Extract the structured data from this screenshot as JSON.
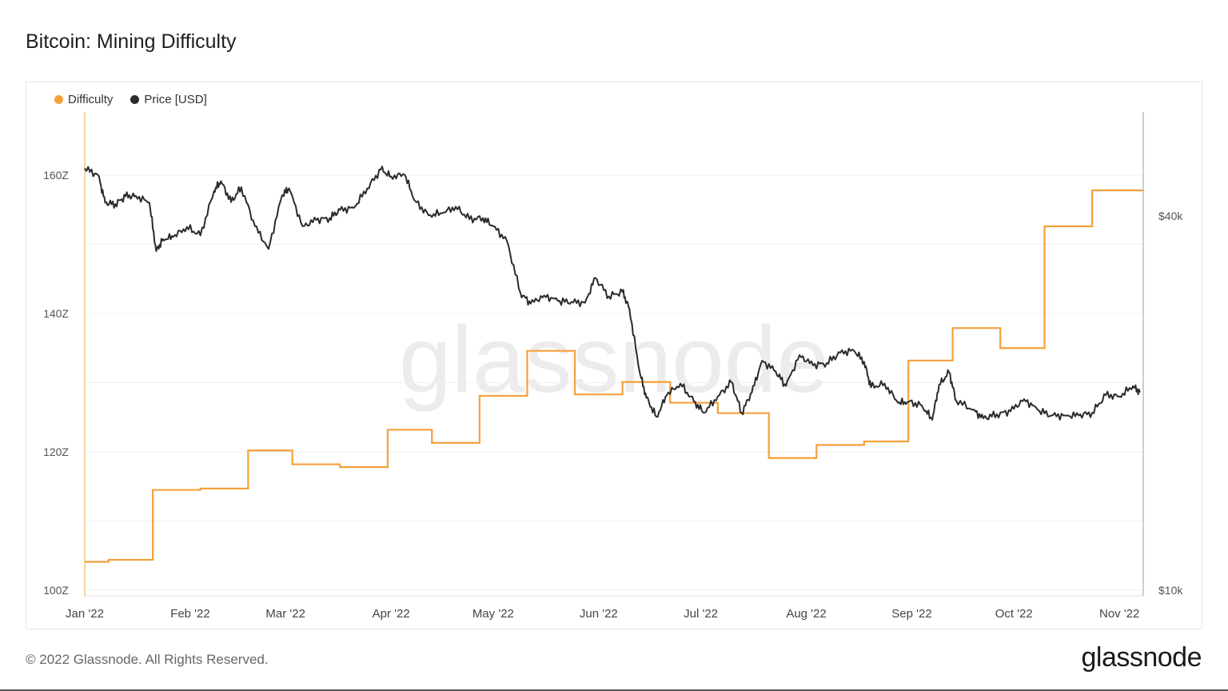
{
  "header": {
    "title": "Bitcoin: Mining Difficulty"
  },
  "legend": {
    "items": [
      {
        "label": "Difficulty",
        "color": "#f5a03a"
      },
      {
        "label": "Price [USD]",
        "color": "#2b2b2b"
      }
    ]
  },
  "watermark": "glassnode",
  "footer": {
    "copyright": "© 2022 Glassnode. All Rights Reserved.",
    "logo_text": "glassnode"
  },
  "chart_data": {
    "type": "line",
    "title": "Bitcoin: Mining Difficulty",
    "x_ticks": [
      "Jan '22",
      "Feb '22",
      "Mar '22",
      "Apr '22",
      "May '22",
      "Jun '22",
      "Jul '22",
      "Aug '22",
      "Sep '22",
      "Oct '22",
      "Nov '22"
    ],
    "y_left": {
      "ticks": [
        "100Z",
        "120Z",
        "140Z",
        "160Z"
      ],
      "range": [
        100,
        170
      ]
    },
    "y_right": {
      "ticks": [
        "$10k",
        "$40k"
      ],
      "scale": "log"
    },
    "grid": true,
    "legend_position": "top-left",
    "series": [
      {
        "name": "Difficulty",
        "color": "#f5a03a",
        "axis": "left",
        "step": true,
        "points": [
          [
            "2022-01-01",
            104.1
          ],
          [
            "2022-01-08",
            104.4
          ],
          [
            "2022-01-21",
            114.5
          ],
          [
            "2022-02-04",
            114.7
          ],
          [
            "2022-02-18",
            120.2
          ],
          [
            "2022-03-03",
            118.2
          ],
          [
            "2022-03-17",
            117.8
          ],
          [
            "2022-03-31",
            123.2
          ],
          [
            "2022-04-13",
            121.3
          ],
          [
            "2022-04-27",
            128.1
          ],
          [
            "2022-05-11",
            134.6
          ],
          [
            "2022-05-25",
            128.3
          ],
          [
            "2022-06-08",
            130.1
          ],
          [
            "2022-06-22",
            127.1
          ],
          [
            "2022-07-06",
            125.6
          ],
          [
            "2022-07-21",
            119.1
          ],
          [
            "2022-08-04",
            121.0
          ],
          [
            "2022-08-18",
            121.5
          ],
          [
            "2022-08-31",
            133.2
          ],
          [
            "2022-09-13",
            137.9
          ],
          [
            "2022-09-27",
            135.0
          ],
          [
            "2022-10-10",
            152.6
          ],
          [
            "2022-10-24",
            157.8
          ],
          [
            "2022-11-06",
            157.8
          ]
        ]
      },
      {
        "name": "Price [USD]",
        "color": "#2b2b2b",
        "axis": "right",
        "points": [
          [
            "2022-01-01",
            47700
          ],
          [
            "2022-01-05",
            46500
          ],
          [
            "2022-01-07",
            42000
          ],
          [
            "2022-01-10",
            41800
          ],
          [
            "2022-01-13",
            43000
          ],
          [
            "2022-01-16",
            43100
          ],
          [
            "2022-01-20",
            42000
          ],
          [
            "2022-01-22",
            35100
          ],
          [
            "2022-01-24",
            36700
          ],
          [
            "2022-01-27",
            37000
          ],
          [
            "2022-01-31",
            38400
          ],
          [
            "2022-02-04",
            37200
          ],
          [
            "2022-02-08",
            43900
          ],
          [
            "2022-02-10",
            45500
          ],
          [
            "2022-02-13",
            42100
          ],
          [
            "2022-02-16",
            44500
          ],
          [
            "2022-02-20",
            38500
          ],
          [
            "2022-02-24",
            35400
          ],
          [
            "2022-02-28",
            43200
          ],
          [
            "2022-03-02",
            44300
          ],
          [
            "2022-03-06",
            38500
          ],
          [
            "2022-03-10",
            39400
          ],
          [
            "2022-03-14",
            39700
          ],
          [
            "2022-03-17",
            40900
          ],
          [
            "2022-03-21",
            41200
          ],
          [
            "2022-03-25",
            44300
          ],
          [
            "2022-03-29",
            47500
          ],
          [
            "2022-04-01",
            46300
          ],
          [
            "2022-04-05",
            46600
          ],
          [
            "2022-04-08",
            42300
          ],
          [
            "2022-04-12",
            40100
          ],
          [
            "2022-04-16",
            40400
          ],
          [
            "2022-04-20",
            41400
          ],
          [
            "2022-04-24",
            39500
          ],
          [
            "2022-04-28",
            39700
          ],
          [
            "2022-05-01",
            38500
          ],
          [
            "2022-05-05",
            36500
          ],
          [
            "2022-05-09",
            30100
          ],
          [
            "2022-05-12",
            28900
          ],
          [
            "2022-05-16",
            29800
          ],
          [
            "2022-05-20",
            29200
          ],
          [
            "2022-05-24",
            29100
          ],
          [
            "2022-05-28",
            29000
          ],
          [
            "2022-05-31",
            31800
          ],
          [
            "2022-06-04",
            29700
          ],
          [
            "2022-06-08",
            30200
          ],
          [
            "2022-06-10",
            28400
          ],
          [
            "2022-06-13",
            22500
          ],
          [
            "2022-06-15",
            20400
          ],
          [
            "2022-06-18",
            19000
          ],
          [
            "2022-06-21",
            20600
          ],
          [
            "2022-06-25",
            21500
          ],
          [
            "2022-06-29",
            20100
          ],
          [
            "2022-07-02",
            19300
          ],
          [
            "2022-07-06",
            20500
          ],
          [
            "2022-07-10",
            21600
          ],
          [
            "2022-07-13",
            19300
          ],
          [
            "2022-07-16",
            20800
          ],
          [
            "2022-07-19",
            23400
          ],
          [
            "2022-07-23",
            22500
          ],
          [
            "2022-07-26",
            21300
          ],
          [
            "2022-07-30",
            23900
          ],
          [
            "2022-08-03",
            23000
          ],
          [
            "2022-08-07",
            23200
          ],
          [
            "2022-08-11",
            24100
          ],
          [
            "2022-08-15",
            24300
          ],
          [
            "2022-08-18",
            23300
          ],
          [
            "2022-08-20",
            21200
          ],
          [
            "2022-08-24",
            21500
          ],
          [
            "2022-08-28",
            20000
          ],
          [
            "2022-08-31",
            20100
          ],
          [
            "2022-09-04",
            19800
          ],
          [
            "2022-09-07",
            18800
          ],
          [
            "2022-09-09",
            21400
          ],
          [
            "2022-09-12",
            22400
          ],
          [
            "2022-09-14",
            20200
          ],
          [
            "2022-09-19",
            19500
          ],
          [
            "2022-09-22",
            18900
          ],
          [
            "2022-09-26",
            19200
          ],
          [
            "2022-09-30",
            19400
          ],
          [
            "2022-10-04",
            20300
          ],
          [
            "2022-10-08",
            19500
          ],
          [
            "2022-10-12",
            19100
          ],
          [
            "2022-10-16",
            19100
          ],
          [
            "2022-10-20",
            19100
          ],
          [
            "2022-10-24",
            19300
          ],
          [
            "2022-10-28",
            20600
          ],
          [
            "2022-11-01",
            20500
          ],
          [
            "2022-11-05",
            21300
          ],
          [
            "2022-11-07",
            20800
          ]
        ]
      }
    ]
  }
}
